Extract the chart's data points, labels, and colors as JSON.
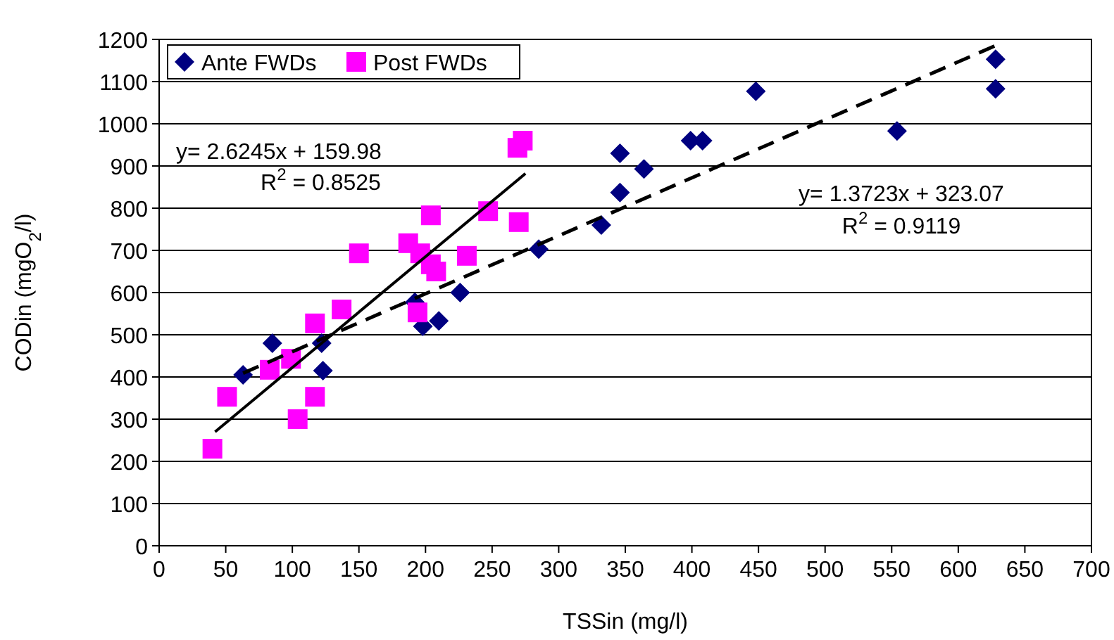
{
  "chart_data": {
    "type": "scatter",
    "xlabel": "TSSin (mg/l)",
    "ylabel": "CODin (mgO$_{2}$/l)",
    "xlim": [
      0,
      700
    ],
    "ylim": [
      0,
      1200
    ],
    "xticks": [
      0,
      50,
      100,
      150,
      200,
      250,
      300,
      350,
      400,
      450,
      500,
      550,
      600,
      650,
      700
    ],
    "yticks": [
      0,
      100,
      200,
      300,
      400,
      500,
      600,
      700,
      800,
      900,
      1000,
      1100,
      1200
    ],
    "grid": "y",
    "legend": "top left",
    "series": [
      {
        "name": "Ante FWDs",
        "color": "#000080",
        "marker": "diamond",
        "x": [
          63,
          85,
          122,
          123,
          192,
          198,
          210,
          226,
          285,
          332,
          346,
          346,
          364,
          399,
          408,
          448,
          554,
          628,
          628
        ],
        "values": [
          405,
          480,
          480,
          415,
          577,
          520,
          533,
          600,
          703,
          760,
          930,
          837,
          893,
          960,
          960,
          1077,
          983,
          1083,
          1153
        ]
      },
      {
        "name": "Post FWDs",
        "color": "#ff00ff",
        "marker": "square",
        "x": [
          40,
          51,
          83,
          99,
          104,
          117,
          117,
          137,
          150,
          187,
          194,
          196,
          204,
          204,
          208,
          231,
          247,
          269,
          270,
          273
        ],
        "values": [
          230,
          353,
          417,
          443,
          300,
          353,
          527,
          560,
          693,
          717,
          553,
          693,
          667,
          783,
          650,
          687,
          793,
          943,
          767,
          960
        ]
      },
      {
        "type": "line",
        "color": "#000000",
        "line_style": "solid",
        "x": [
          42,
          275
        ],
        "values": [
          270,
          882
        ]
      },
      {
        "type": "line",
        "color": "#000000",
        "line_style": "dashed",
        "x": [
          63,
          630
        ],
        "values": [
          409,
          1188
        ]
      }
    ],
    "annotations": [
      "y= 2.6245x + 159.98",
      "R$^{2}$ = 0.8525",
      "y= 1.3723x + 323.07",
      "R$^{2}$ = 0.9119"
    ]
  }
}
